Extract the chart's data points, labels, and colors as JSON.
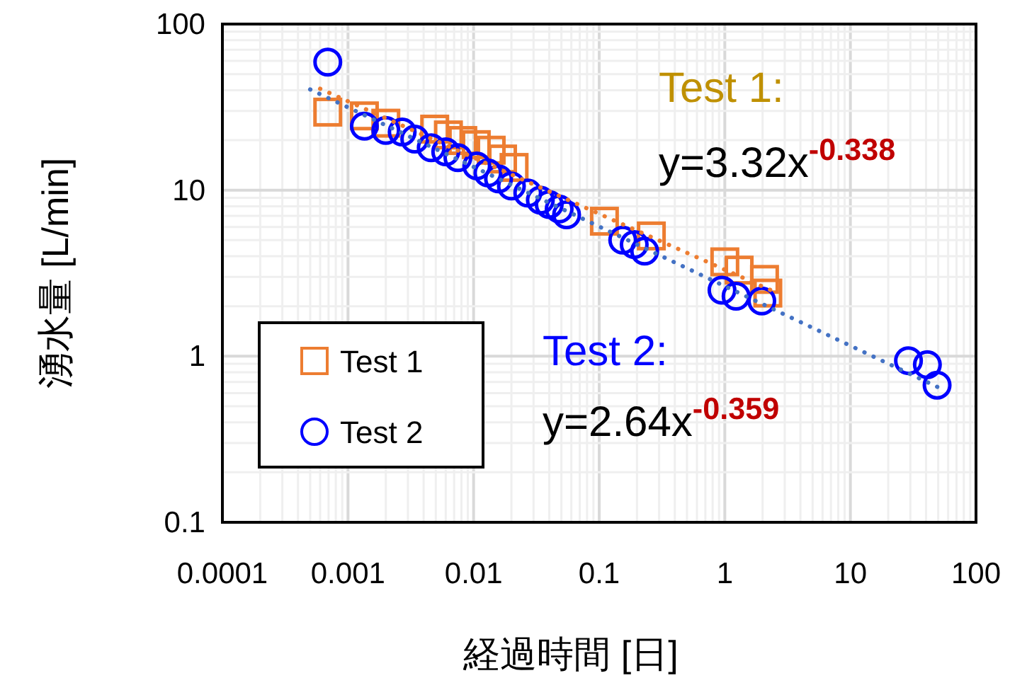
{
  "chart_data": {
    "type": "scatter",
    "xlabel": "経過時間 [日]",
    "ylabel": "湧水量 [L/min]",
    "log": "xy",
    "xlim": [
      0.0001,
      100
    ],
    "ylim": [
      0.1,
      100
    ],
    "xticks": [
      0.0001,
      0.001,
      0.01,
      0.1,
      1,
      10,
      100
    ],
    "yticks": [
      0.1,
      1,
      10,
      100
    ],
    "grid": true,
    "legend": "bottom left",
    "series": [
      {
        "name": "Test 1",
        "color": "#ed7d31",
        "marker": "square",
        "x": [
          0.00069,
          0.00135,
          0.002,
          0.0049,
          0.0063,
          0.0082,
          0.0105,
          0.0138,
          0.017,
          0.021,
          0.11,
          0.26,
          1.0,
          1.3,
          2.07,
          2.2
        ],
        "values": [
          29.5,
          28,
          25.3,
          23.3,
          21.5,
          19.9,
          18.8,
          17.4,
          15.4,
          13.7,
          6.5,
          5.3,
          3.7,
          3.3,
          2.9,
          2.4
        ]
      },
      {
        "name": "Test 2",
        "color": "#0000ff",
        "marker": "circle",
        "x": [
          0.00069,
          0.00135,
          0.002,
          0.0027,
          0.0034,
          0.0046,
          0.006,
          0.0075,
          0.0106,
          0.013,
          0.0158,
          0.02,
          0.027,
          0.034,
          0.04,
          0.048,
          0.055,
          0.154,
          0.19,
          0.23,
          0.95,
          1.23,
          1.97,
          29,
          41,
          49
        ],
        "values": [
          59,
          24.3,
          22.9,
          22.4,
          20.3,
          18,
          17,
          15.7,
          14,
          12.7,
          11.7,
          10.6,
          9.6,
          8.7,
          8.2,
          7.7,
          7.1,
          5.0,
          4.7,
          4.3,
          2.5,
          2.3,
          2.15,
          0.94,
          0.89,
          0.67
        ]
      },
      {
        "type": "line",
        "color": "#ed7d31",
        "line_style": "dotted",
        "marker": "none",
        "x": [
          0.0006,
          0.01,
          0.1,
          2.5
        ],
        "values": [
          40.8,
          15.7,
          7.2,
          2.44
        ]
      },
      {
        "type": "line",
        "color": "#4472c4",
        "line_style": "dotted",
        "marker": "none",
        "x": [
          0.0005,
          0.01,
          1,
          50
        ],
        "values": [
          40.4,
          13.8,
          2.64,
          0.65
        ]
      }
    ],
    "annotations": [
      "Test 1:",
      "y=3.32x$^{-0.338}$",
      "Test 2:",
      "y=2.64x$^{-0.359}$"
    ]
  }
}
